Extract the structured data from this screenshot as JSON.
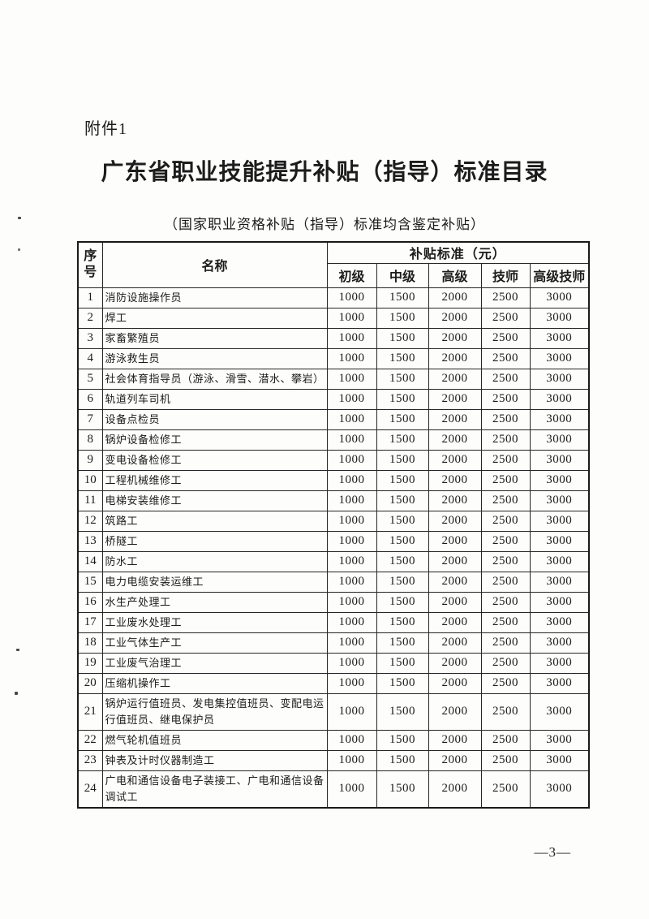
{
  "colors": {
    "ink": "#1c1c1c",
    "paper": "#fdfdfb"
  },
  "page": {
    "attachment_label": "附件1",
    "title": "广东省职业技能提升补贴（指导）标准目录",
    "subtitle": "（国家职业资格补贴（指导）标准均含鉴定补贴）",
    "page_number": "—3—"
  },
  "table": {
    "headers": {
      "index": "序号",
      "name": "名称",
      "subsidy_group": "补贴标准（元）",
      "levels": [
        "初级",
        "中级",
        "高级",
        "技师",
        "高级技师"
      ]
    },
    "rows": [
      {
        "no": "1",
        "name": "消防设施操作员",
        "values": [
          "1000",
          "1500",
          "2000",
          "2500",
          "3000"
        ]
      },
      {
        "no": "2",
        "name": "焊工",
        "values": [
          "1000",
          "1500",
          "2000",
          "2500",
          "3000"
        ]
      },
      {
        "no": "3",
        "name": "家畜繁殖员",
        "values": [
          "1000",
          "1500",
          "2000",
          "2500",
          "3000"
        ]
      },
      {
        "no": "4",
        "name": "游泳救生员",
        "values": [
          "1000",
          "1500",
          "2000",
          "2500",
          "3000"
        ]
      },
      {
        "no": "5",
        "name": "社会体育指导员（游泳、滑雪、潜水、攀岩）",
        "values": [
          "1000",
          "1500",
          "2000",
          "2500",
          "3000"
        ]
      },
      {
        "no": "6",
        "name": "轨道列车司机",
        "values": [
          "1000",
          "1500",
          "2000",
          "2500",
          "3000"
        ]
      },
      {
        "no": "7",
        "name": "设备点检员",
        "values": [
          "1000",
          "1500",
          "2000",
          "2500",
          "3000"
        ]
      },
      {
        "no": "8",
        "name": "锅炉设备检修工",
        "values": [
          "1000",
          "1500",
          "2000",
          "2500",
          "3000"
        ]
      },
      {
        "no": "9",
        "name": "变电设备检修工",
        "values": [
          "1000",
          "1500",
          "2000",
          "2500",
          "3000"
        ]
      },
      {
        "no": "10",
        "name": "工程机械维修工",
        "values": [
          "1000",
          "1500",
          "2000",
          "2500",
          "3000"
        ]
      },
      {
        "no": "11",
        "name": "电梯安装维修工",
        "values": [
          "1000",
          "1500",
          "2000",
          "2500",
          "3000"
        ]
      },
      {
        "no": "12",
        "name": "筑路工",
        "values": [
          "1000",
          "1500",
          "2000",
          "2500",
          "3000"
        ]
      },
      {
        "no": "13",
        "name": "桥隧工",
        "values": [
          "1000",
          "1500",
          "2000",
          "2500",
          "3000"
        ]
      },
      {
        "no": "14",
        "name": "防水工",
        "values": [
          "1000",
          "1500",
          "2000",
          "2500",
          "3000"
        ]
      },
      {
        "no": "15",
        "name": "电力电缆安装运维工",
        "values": [
          "1000",
          "1500",
          "2000",
          "2500",
          "3000"
        ]
      },
      {
        "no": "16",
        "name": "水生产处理工",
        "values": [
          "1000",
          "1500",
          "2000",
          "2500",
          "3000"
        ]
      },
      {
        "no": "17",
        "name": "工业废水处理工",
        "values": [
          "1000",
          "1500",
          "2000",
          "2500",
          "3000"
        ]
      },
      {
        "no": "18",
        "name": "工业气体生产工",
        "values": [
          "1000",
          "1500",
          "2000",
          "2500",
          "3000"
        ]
      },
      {
        "no": "19",
        "name": "工业废气治理工",
        "values": [
          "1000",
          "1500",
          "2000",
          "2500",
          "3000"
        ]
      },
      {
        "no": "20",
        "name": "压缩机操作工",
        "values": [
          "1000",
          "1500",
          "2000",
          "2500",
          "3000"
        ]
      },
      {
        "no": "21",
        "name": "锅炉运行值班员、发电集控值班员、变配电运行值班员、继电保护员",
        "values": [
          "1000",
          "1500",
          "2000",
          "2500",
          "3000"
        ]
      },
      {
        "no": "22",
        "name": "燃气轮机值班员",
        "values": [
          "1000",
          "1500",
          "2000",
          "2500",
          "3000"
        ]
      },
      {
        "no": "23",
        "name": "钟表及计时仪器制造工",
        "values": [
          "1000",
          "1500",
          "2000",
          "2500",
          "3000"
        ]
      },
      {
        "no": "24",
        "name": "广电和通信设备电子装接工、广电和通信设备调试工",
        "values": [
          "1000",
          "1500",
          "2000",
          "2500",
          "3000"
        ]
      }
    ]
  }
}
